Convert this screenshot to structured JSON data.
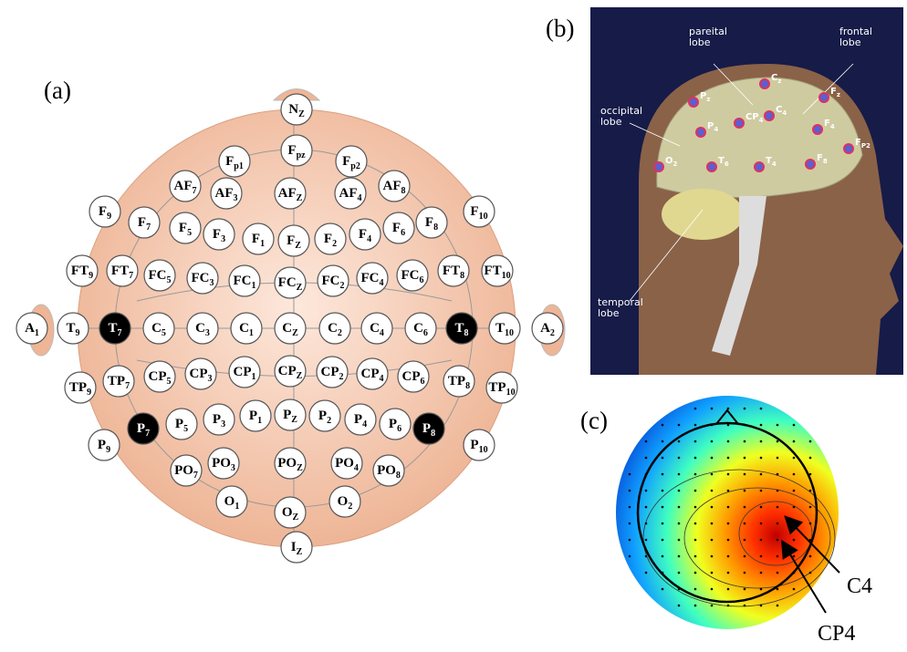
{
  "panel_a": {
    "label": "(a)",
    "electrodes": [
      {
        "base": "N",
        "sub": "Z"
      },
      {
        "base": "F",
        "sub": "p1"
      },
      {
        "base": "F",
        "sub": "pz"
      },
      {
        "base": "F",
        "sub": "p2"
      },
      {
        "base": "AF",
        "sub": "7"
      },
      {
        "base": "AF",
        "sub": "3"
      },
      {
        "base": "AF",
        "sub": "Z"
      },
      {
        "base": "AF",
        "sub": "4"
      },
      {
        "base": "AF",
        "sub": "8"
      },
      {
        "base": "F",
        "sub": "9"
      },
      {
        "base": "F",
        "sub": "10"
      },
      {
        "base": "F",
        "sub": "7"
      },
      {
        "base": "F",
        "sub": "5"
      },
      {
        "base": "F",
        "sub": "3"
      },
      {
        "base": "F",
        "sub": "1"
      },
      {
        "base": "F",
        "sub": "Z"
      },
      {
        "base": "F",
        "sub": "2"
      },
      {
        "base": "F",
        "sub": "4"
      },
      {
        "base": "F",
        "sub": "6"
      },
      {
        "base": "F",
        "sub": "8"
      },
      {
        "base": "FT",
        "sub": "9"
      },
      {
        "base": "FT",
        "sub": "7"
      },
      {
        "base": "FC",
        "sub": "5"
      },
      {
        "base": "FC",
        "sub": "3"
      },
      {
        "base": "FC",
        "sub": "1"
      },
      {
        "base": "FC",
        "sub": "Z"
      },
      {
        "base": "FC",
        "sub": "2"
      },
      {
        "base": "FC",
        "sub": "4"
      },
      {
        "base": "FC",
        "sub": "6"
      },
      {
        "base": "FT",
        "sub": "8"
      },
      {
        "base": "FT",
        "sub": "10"
      },
      {
        "base": "A",
        "sub": "1"
      },
      {
        "base": "T",
        "sub": "9"
      },
      {
        "base": "T",
        "sub": "7",
        "dark": true
      },
      {
        "base": "C",
        "sub": "5"
      },
      {
        "base": "C",
        "sub": "3"
      },
      {
        "base": "C",
        "sub": "1"
      },
      {
        "base": "C",
        "sub": "Z"
      },
      {
        "base": "C",
        "sub": "2"
      },
      {
        "base": "C",
        "sub": "4"
      },
      {
        "base": "C",
        "sub": "6"
      },
      {
        "base": "T",
        "sub": "8",
        "dark": true
      },
      {
        "base": "T",
        "sub": "10"
      },
      {
        "base": "A",
        "sub": "2"
      },
      {
        "base": "TP",
        "sub": "9"
      },
      {
        "base": "TP",
        "sub": "7"
      },
      {
        "base": "CP",
        "sub": "5"
      },
      {
        "base": "CP",
        "sub": "3"
      },
      {
        "base": "CP",
        "sub": "1"
      },
      {
        "base": "CP",
        "sub": "Z"
      },
      {
        "base": "CP",
        "sub": "2"
      },
      {
        "base": "CP",
        "sub": "4"
      },
      {
        "base": "CP",
        "sub": "6"
      },
      {
        "base": "TP",
        "sub": "8"
      },
      {
        "base": "TP",
        "sub": "10"
      },
      {
        "base": "P",
        "sub": "9"
      },
      {
        "base": "P",
        "sub": "7",
        "dark": true
      },
      {
        "base": "P",
        "sub": "5"
      },
      {
        "base": "P",
        "sub": "3"
      },
      {
        "base": "P",
        "sub": "1"
      },
      {
        "base": "P",
        "sub": "Z"
      },
      {
        "base": "P",
        "sub": "2"
      },
      {
        "base": "P",
        "sub": "4"
      },
      {
        "base": "P",
        "sub": "6"
      },
      {
        "base": "P",
        "sub": "8",
        "dark": true
      },
      {
        "base": "P",
        "sub": "10"
      },
      {
        "base": "PO",
        "sub": "7"
      },
      {
        "base": "PO",
        "sub": "3"
      },
      {
        "base": "PO",
        "sub": "Z"
      },
      {
        "base": "PO",
        "sub": "4"
      },
      {
        "base": "PO",
        "sub": "8"
      },
      {
        "base": "O",
        "sub": "1"
      },
      {
        "base": "O",
        "sub": "Z"
      },
      {
        "base": "O",
        "sub": "2"
      },
      {
        "base": "I",
        "sub": "Z"
      }
    ]
  },
  "panel_b": {
    "label": "(b)",
    "lobes": [
      {
        "lines": [
          "pareital",
          "lobe"
        ]
      },
      {
        "lines": [
          "frontal",
          "lobe"
        ]
      },
      {
        "lines": [
          "occipital",
          "lobe"
        ]
      },
      {
        "lines": [
          "temporal",
          "lobe"
        ]
      }
    ],
    "electrodes": [
      {
        "base": "C",
        "sub": "z"
      },
      {
        "base": "P",
        "sub": "z"
      },
      {
        "base": "CP",
        "sub": "4"
      },
      {
        "base": "C",
        "sub": "4"
      },
      {
        "base": "F",
        "sub": "z"
      },
      {
        "base": "F",
        "sub": "4"
      },
      {
        "base": "F",
        "sub": "P2"
      },
      {
        "base": "P",
        "sub": "4"
      },
      {
        "base": "O",
        "sub": "2"
      },
      {
        "base": "T",
        "sub": "6"
      },
      {
        "base": "T",
        "sub": "4"
      },
      {
        "base": "F",
        "sub": "8"
      }
    ]
  },
  "panel_c": {
    "label": "(c)",
    "pointers": [
      "C4",
      "CP4"
    ]
  }
}
